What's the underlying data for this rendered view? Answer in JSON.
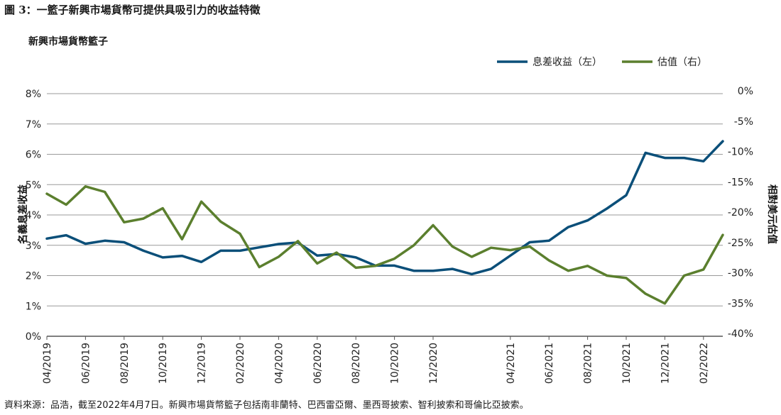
{
  "figure": {
    "title": "圖 3：一籃子新興市場貨幣可提供具吸引力的收益特徵",
    "source": "資料來源：品浩，截至2022年4月7日。新興市場貨幣籃子包括南非蘭特、巴西雷亞爾、墨西哥披索、智利披索和哥倫比亞披索。"
  },
  "chart_data": {
    "type": "line",
    "subtitle": "新興市場貨幣籃子",
    "xlabel": "",
    "ylabel_left": "名義息差收益",
    "ylabel_right": "相對美元估值",
    "ylim_left": [
      0,
      8
    ],
    "ylim_right": [
      -40,
      0
    ],
    "yticks_left": [
      "0%",
      "1%",
      "2%",
      "3%",
      "4%",
      "5%",
      "6%",
      "7%",
      "8%"
    ],
    "yticks_right": [
      "-40%",
      "-35%",
      "-30%",
      "-25%",
      "-20%",
      "-15%",
      "-10%",
      "-5%",
      "0%"
    ],
    "x_tick_labels": [
      "04/2019",
      "06/2019",
      "08/2019",
      "10/2019",
      "12/2019",
      "02/2020",
      "04/2020",
      "06/2020",
      "08/2020",
      "10/2020",
      "12/2020",
      "04/2021",
      "06/2021",
      "08/2021",
      "10/2021",
      "12/2021",
      "02/2022"
    ],
    "x": [
      "04/2019",
      "05/2019",
      "06/2019",
      "07/2019",
      "08/2019",
      "09/2019",
      "10/2019",
      "11/2019",
      "12/2019",
      "01/2020",
      "02/2020",
      "03/2020",
      "04/2020",
      "05/2020",
      "06/2020",
      "07/2020",
      "08/2020",
      "09/2020",
      "10/2020",
      "11/2020",
      "12/2020",
      "01/2021",
      "02/2021",
      "03/2021",
      "04/2021",
      "05/2021",
      "06/2021",
      "07/2021",
      "08/2021",
      "09/2021",
      "10/2021",
      "11/2021",
      "12/2021",
      "01/2022",
      "02/2022",
      "03/2022"
    ],
    "legend_position": "top-right",
    "grid": true,
    "series": [
      {
        "name": "息差收益（左）",
        "axis": "left",
        "color": "#0b4f79",
        "values": [
          3.22,
          3.33,
          3.05,
          3.15,
          3.1,
          2.82,
          2.6,
          2.65,
          2.45,
          2.82,
          2.82,
          2.93,
          3.04,
          3.09,
          2.66,
          2.71,
          2.6,
          2.33,
          2.33,
          2.16,
          2.16,
          2.22,
          2.05,
          2.22,
          2.66,
          3.1,
          3.15,
          3.6,
          3.82,
          4.21,
          4.65,
          6.05,
          5.88,
          5.88,
          5.77,
          6.43
        ]
      },
      {
        "name": "估值（右）",
        "axis": "right",
        "color": "#5b7f2e",
        "values": [
          -16.5,
          -18.3,
          -15.3,
          -16.2,
          -21.2,
          -20.6,
          -18.9,
          -24.0,
          -17.8,
          -21.1,
          -23.1,
          -28.6,
          -26.9,
          -24.3,
          -28.0,
          -26.2,
          -28.7,
          -28.4,
          -27.2,
          -25.0,
          -21.7,
          -25.2,
          -26.9,
          -25.4,
          -25.8,
          -25.2,
          -27.5,
          -29.2,
          -28.4,
          -30.0,
          -30.4,
          -33.0,
          -34.6,
          -30.0,
          -29.0,
          -23.3
        ]
      }
    ]
  }
}
